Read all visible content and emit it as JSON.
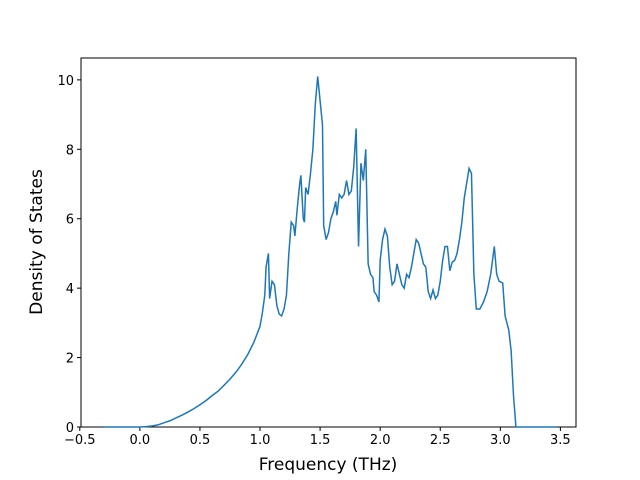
{
  "chart_data": {
    "type": "line",
    "x_label": "Frequency (THz)",
    "y_label": "Density of States",
    "xlim": [
      -0.49,
      3.63
    ],
    "ylim": [
      0,
      10.63
    ],
    "xticks": [
      {
        "value": -0.5,
        "label": "−0.5"
      },
      {
        "value": 0,
        "label": "0.0"
      },
      0.5,
      {
        "value": 1,
        "label": "1.0"
      },
      1.5,
      {
        "value": 2,
        "label": "2.0"
      },
      2.5,
      {
        "value": 3,
        "label": "3.0"
      },
      3.5
    ],
    "yticks": [
      0,
      2,
      4,
      6,
      8,
      10
    ],
    "series": [
      {
        "color": "#1f77b4",
        "x": [
          -0.3,
          -0.2,
          -0.1,
          0,
          0.05,
          0.1,
          0.15,
          0.2,
          0.25,
          0.3,
          0.35,
          0.4,
          0.45,
          0.5,
          0.55,
          0.6,
          0.65,
          0.7,
          0.75,
          0.8,
          0.85,
          0.9,
          0.95,
          1,
          1.02,
          1.04,
          1.05,
          1.07,
          1.08,
          1.1,
          1.12,
          1.14,
          1.16,
          1.18,
          1.2,
          1.22,
          1.24,
          1.26,
          1.28,
          1.29,
          1.31,
          1.33,
          1.34,
          1.36,
          1.37,
          1.38,
          1.4,
          1.42,
          1.44,
          1.46,
          1.48,
          1.5,
          1.52,
          1.53,
          1.55,
          1.57,
          1.59,
          1.61,
          1.63,
          1.64,
          1.66,
          1.68,
          1.7,
          1.72,
          1.74,
          1.76,
          1.78,
          1.8,
          1.82,
          1.84,
          1.86,
          1.88,
          1.9,
          1.92,
          1.94,
          1.95,
          1.97,
          1.99,
          2,
          2.02,
          2.04,
          2.06,
          2.08,
          2.1,
          2.12,
          2.14,
          2.16,
          2.18,
          2.2,
          2.22,
          2.24,
          2.26,
          2.28,
          2.3,
          2.32,
          2.34,
          2.36,
          2.38,
          2.4,
          2.42,
          2.44,
          2.46,
          2.48,
          2.5,
          2.52,
          2.54,
          2.56,
          2.58,
          2.6,
          2.62,
          2.64,
          2.66,
          2.68,
          2.7,
          2.74,
          2.76,
          2.78,
          2.8,
          2.83,
          2.86,
          2.89,
          2.92,
          2.95,
          2.97,
          2.99,
          3.02,
          3.04,
          3.07,
          3.09,
          3.11,
          3.13,
          3.2,
          3.3,
          3.4,
          3.47
        ],
        "values": [
          0,
          0,
          0,
          0,
          0.01,
          0.03,
          0.06,
          0.12,
          0.18,
          0.26,
          0.34,
          0.43,
          0.53,
          0.64,
          0.76,
          0.9,
          1.03,
          1.2,
          1.38,
          1.58,
          1.82,
          2.1,
          2.45,
          2.9,
          3.3,
          3.8,
          4.6,
          5.0,
          3.7,
          4.2,
          4.1,
          3.5,
          3.25,
          3.2,
          3.4,
          3.8,
          5.0,
          5.9,
          5.8,
          5.5,
          6.3,
          7.0,
          7.25,
          6.0,
          5.9,
          6.9,
          6.7,
          7.3,
          8.0,
          9.3,
          10.1,
          9.4,
          8.7,
          5.8,
          5.4,
          5.6,
          6.0,
          6.2,
          6.5,
          6.1,
          6.7,
          6.6,
          6.7,
          7.1,
          6.7,
          6.8,
          7.5,
          8.6,
          5.2,
          7.6,
          7.1,
          8.0,
          4.7,
          4.4,
          4.3,
          3.9,
          3.8,
          3.6,
          4.8,
          5.4,
          5.7,
          5.5,
          4.6,
          4.1,
          4.2,
          4.7,
          4.4,
          4.1,
          4.0,
          4.4,
          4.3,
          4.6,
          5.0,
          5.4,
          5.3,
          5.0,
          4.7,
          4.6,
          3.9,
          3.7,
          3.95,
          3.7,
          3.8,
          4.2,
          4.8,
          5.2,
          5.2,
          4.5,
          4.75,
          4.8,
          5.0,
          5.4,
          5.9,
          6.6,
          7.45,
          7.3,
          4.4,
          3.4,
          3.4,
          3.6,
          3.9,
          4.4,
          5.2,
          4.4,
          4.2,
          4.15,
          3.2,
          2.8,
          2.2,
          0.9,
          0,
          0,
          0,
          0,
          0
        ]
      }
    ]
  }
}
